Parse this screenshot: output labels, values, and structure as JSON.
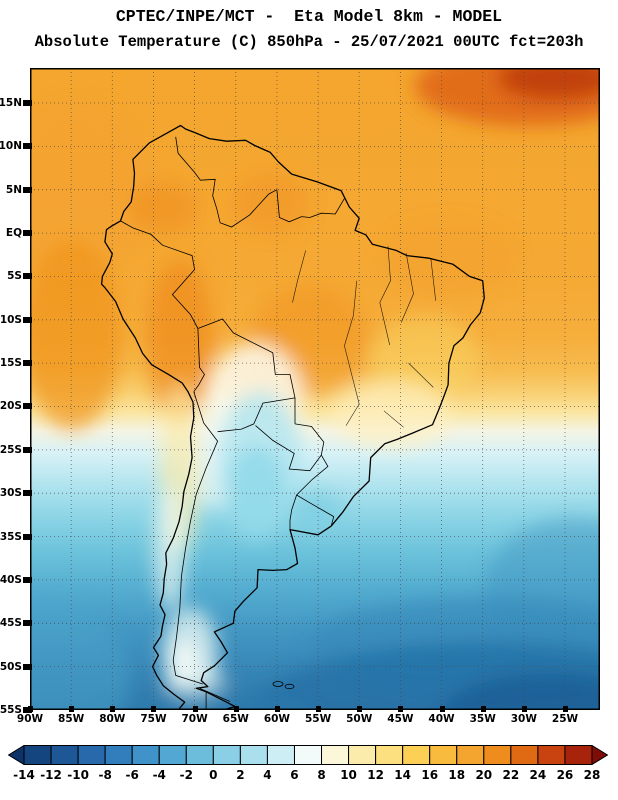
{
  "header": {
    "title_line1": "CPTEC/INPE/MCT -  Eta Model 8km - MODEL",
    "title_line2": "Absolute Temperature (C) 850hPa - 25/07/2021 00UTC fct=203h"
  },
  "map": {
    "lat_labels": [
      "15N",
      "10N",
      "5N",
      "EQ",
      "5S",
      "10S",
      "15S",
      "20S",
      "25S",
      "30S",
      "35S",
      "40S",
      "45S",
      "50S",
      "55S"
    ],
    "lon_labels": [
      "90W",
      "85W",
      "80W",
      "75W",
      "70W",
      "65W",
      "60W",
      "55W",
      "50W",
      "45W",
      "40W",
      "35W",
      "30W",
      "25W"
    ]
  },
  "colorbar": {
    "tick_labels": [
      "-14",
      "-12",
      "-10",
      "-8",
      "-6",
      "-4",
      "-2",
      "0",
      "2",
      "4",
      "6",
      "8",
      "10",
      "12",
      "14",
      "16",
      "18",
      "20",
      "22",
      "24",
      "26",
      "28"
    ],
    "arrow_left_color": "#0d3268",
    "arrow_right_color": "#7e0d08",
    "segment_colors": [
      "#15457f",
      "#1d5795",
      "#2769aa",
      "#327ebc",
      "#3f93c8",
      "#52a8d2",
      "#6cbcdc",
      "#8bcfe6",
      "#aadfee",
      "#cdeef5",
      "#f2fafa",
      "#fdf7da",
      "#fcecab",
      "#fcdf7e",
      "#fbd055",
      "#f8bb3d",
      "#f4a52f",
      "#ef8c1e",
      "#e06a14",
      "#c8430f",
      "#a8230b"
    ]
  },
  "chart_data": {
    "type": "heatmap",
    "title": "Absolute Temperature (C) 850hPa",
    "source": "CPTEC/INPE/MCT",
    "model": "Eta Model 8km - MODEL",
    "valid": "25/07/2021 00UTC",
    "forecast_hour": "fct=203h",
    "units": "C",
    "x_ticks": [
      "90W",
      "85W",
      "80W",
      "75W",
      "70W",
      "65W",
      "60W",
      "55W",
      "50W",
      "45W",
      "40W",
      "35W",
      "30W",
      "25W"
    ],
    "y_ticks": [
      "15N",
      "10N",
      "5N",
      "EQ",
      "5S",
      "10S",
      "15S",
      "20S",
      "25S",
      "30S",
      "35S",
      "40S",
      "45S",
      "50S",
      "55S"
    ],
    "contour_levels_C": [
      -14,
      -12,
      -10,
      -8,
      -6,
      -4,
      -2,
      0,
      2,
      4,
      6,
      8,
      10,
      12,
      14,
      16,
      18,
      20,
      22,
      24,
      26,
      28
    ],
    "palette": [
      "#15457f",
      "#1d5795",
      "#2769aa",
      "#327ebc",
      "#3f93c8",
      "#52a8d2",
      "#6cbcdc",
      "#8bcfe6",
      "#aadfee",
      "#cdeef5",
      "#f2fafa",
      "#fdf7da",
      "#fcecab",
      "#fcdf7e",
      "#fbd055",
      "#f8bb3d",
      "#f4a52f",
      "#ef8c1e",
      "#e06a14",
      "#c8430f",
      "#a8230b"
    ],
    "field_summary": [
      {
        "region": "Tropics north of 15S (Amazonia, N South America)",
        "approx_temp_C": "16 to 22"
      },
      {
        "region": "Top-right tropical Atlantic corner maximum",
        "approx_temp_C": "24 to 28"
      },
      {
        "region": "Peru/Bolivia Andes and adjacent E Pacific patches",
        "approx_temp_C": "20 to 22"
      },
      {
        "region": "Transition band ~18S-25S (SE Brazil, Chaco)",
        "approx_temp_C": "4 to 14"
      },
      {
        "region": "Cold tongue over Paraguay / N Argentina (55-67W, 20-35S)",
        "approx_temp_C": "0 to 4"
      },
      {
        "region": "Mid-latitudes 35S-45S",
        "approx_temp_C": "-4 to 0"
      },
      {
        "region": "South of 45S and SW Atlantic",
        "approx_temp_C": "-12 to -4"
      }
    ]
  }
}
